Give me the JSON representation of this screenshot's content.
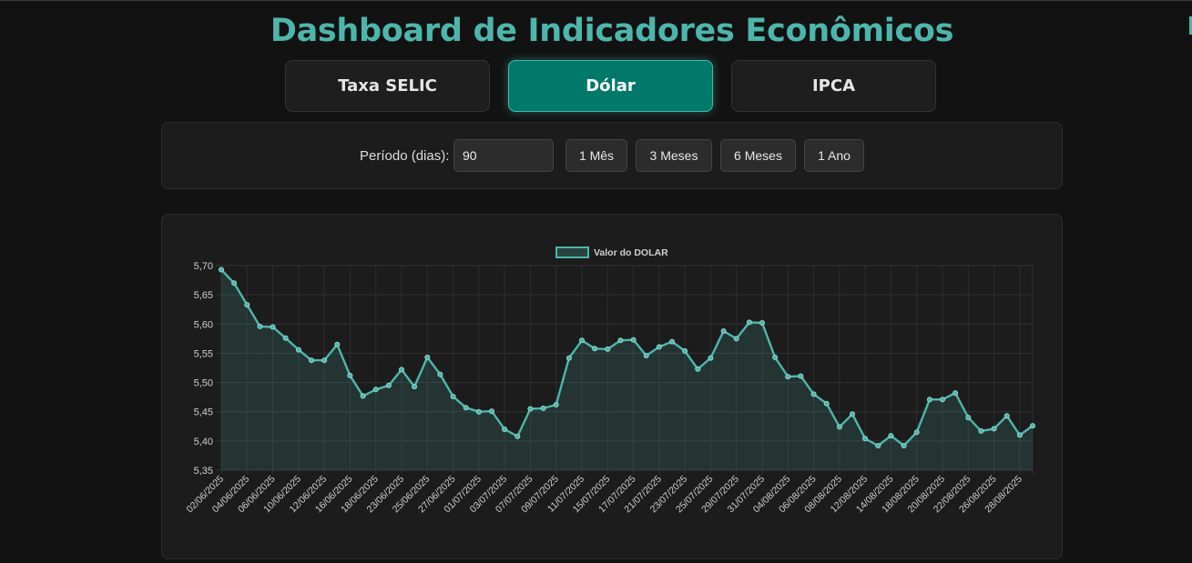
{
  "page": {
    "title": "Dashboard de Indicadores Econômicos"
  },
  "tabs": [
    {
      "label": "Taxa SELIC",
      "active": false
    },
    {
      "label": "Dólar",
      "active": true
    },
    {
      "label": "IPCA",
      "active": false
    }
  ],
  "controls": {
    "period_label": "Período (dias):",
    "period_value": "90",
    "buttons": [
      "1 Mês",
      "3 Meses",
      "6 Meses",
      "1 Ano"
    ]
  },
  "colors": {
    "accent": "#4db6ac",
    "accent_dark": "#00796b"
  },
  "chart_data": {
    "type": "line",
    "legend": "Valor do DOLAR",
    "legend_position": "top",
    "grid": true,
    "ylim": [
      5.35,
      5.7
    ],
    "yticks": [
      "5,70",
      "5,65",
      "5,60",
      "5,55",
      "5,50",
      "5,45",
      "5,40",
      "5,35"
    ],
    "xtick_labels": [
      "02/06/2025",
      "04/06/2025",
      "06/06/2025",
      "10/06/2025",
      "12/06/2025",
      "16/06/2025",
      "18/06/2025",
      "23/06/2025",
      "25/06/2025",
      "27/06/2025",
      "01/07/2025",
      "03/07/2025",
      "07/07/2025",
      "09/07/2025",
      "11/07/2025",
      "15/07/2025",
      "17/07/2025",
      "21/07/2025",
      "23/07/2025",
      "25/07/2025",
      "29/07/2025",
      "31/07/2025",
      "04/08/2025",
      "06/08/2025",
      "08/08/2025",
      "12/08/2025",
      "14/08/2025",
      "18/08/2025",
      "20/08/2025",
      "22/08/2025",
      "26/08/2025",
      "28/08/2025"
    ],
    "series": [
      {
        "values": [
          5.693,
          5.67,
          5.633,
          5.596,
          5.595,
          5.576,
          5.556,
          5.538,
          5.538,
          5.565,
          5.512,
          5.477,
          5.488,
          5.495,
          5.522,
          5.493,
          5.543,
          5.514,
          5.476,
          5.457,
          5.45,
          5.451,
          5.42,
          5.408,
          5.455,
          5.456,
          5.462,
          5.542,
          5.572,
          5.558,
          5.557,
          5.572,
          5.573,
          5.546,
          5.561,
          5.57,
          5.554,
          5.523,
          5.542,
          5.588,
          5.575,
          5.603,
          5.602,
          5.543,
          5.51,
          5.511,
          5.48,
          5.464,
          5.424,
          5.446,
          5.404,
          5.392,
          5.409,
          5.392,
          5.415,
          5.471,
          5.471,
          5.482,
          5.44,
          5.417,
          5.421,
          5.443,
          5.41,
          5.426
        ]
      }
    ]
  }
}
